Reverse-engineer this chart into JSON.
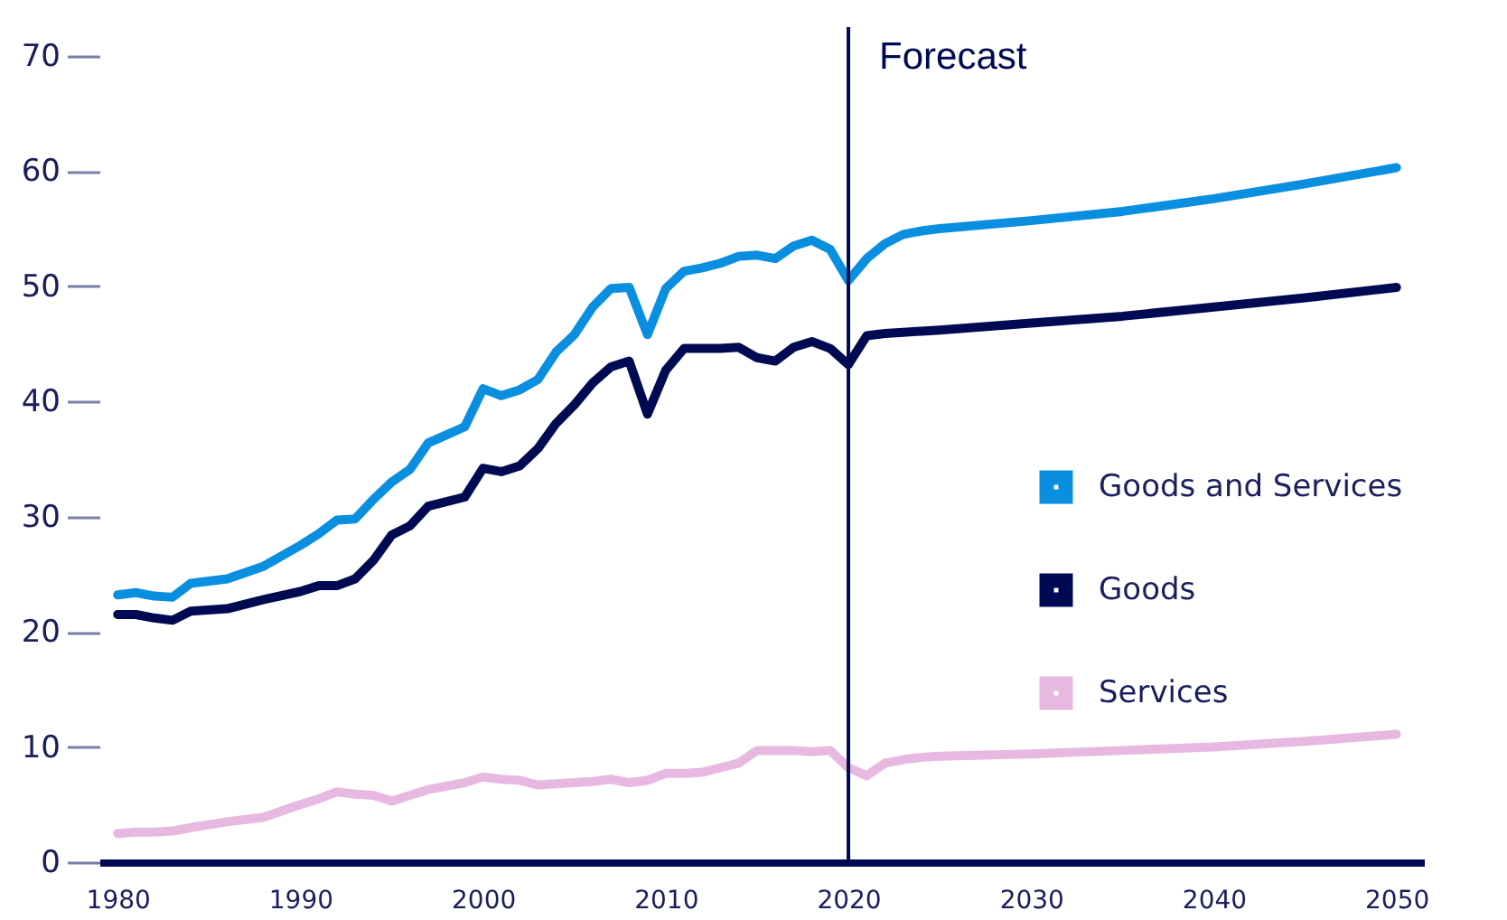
{
  "chart_data": {
    "type": "line",
    "x": [
      1980,
      1981,
      1982,
      1983,
      1984,
      1986,
      1988,
      1990,
      1991,
      1992,
      1993,
      1994,
      1995,
      1996,
      1997,
      1999,
      2000,
      2001,
      2002,
      2003,
      2004,
      2005,
      2006,
      2007,
      2008,
      2009,
      2010,
      2011,
      2012,
      2013,
      2014,
      2015,
      2016,
      2017,
      2018,
      2019,
      2020,
      2021,
      2022,
      2023,
      2024,
      2025,
      2030,
      2035,
      2040,
      2045,
      2050
    ],
    "series": [
      {
        "name": "Goods and Services",
        "color": "#0a8fe0",
        "values": [
          23.2,
          23.4,
          23.1,
          23.0,
          24.2,
          24.6,
          25.7,
          27.5,
          28.5,
          29.7,
          29.8,
          31.5,
          33.0,
          34.1,
          36.4,
          37.8,
          41.1,
          40.5,
          41.0,
          41.9,
          44.3,
          45.8,
          48.2,
          49.8,
          49.9,
          45.8,
          49.8,
          51.3,
          51.6,
          52.0,
          52.6,
          52.7,
          52.4,
          53.5,
          54.0,
          53.2,
          50.5,
          52.4,
          53.7,
          54.5,
          54.8,
          55.0,
          55.7,
          56.5,
          57.6,
          58.9,
          60.3
        ]
      },
      {
        "name": "Goods",
        "color": "#000a52",
        "values": [
          21.5,
          21.5,
          21.2,
          21.0,
          21.8,
          22.0,
          22.8,
          23.5,
          24.0,
          24.0,
          24.6,
          26.2,
          28.4,
          29.2,
          30.9,
          31.7,
          34.2,
          33.9,
          34.4,
          35.9,
          38.1,
          39.7,
          41.6,
          43.0,
          43.5,
          38.9,
          42.7,
          44.6,
          44.6,
          44.6,
          44.7,
          43.8,
          43.5,
          44.7,
          45.2,
          44.6,
          43.2,
          45.7,
          45.9,
          46.0,
          46.1,
          46.2,
          46.8,
          47.4,
          48.2,
          49.0,
          49.9
        ]
      },
      {
        "name": "Services",
        "color": "#e8b9e0",
        "values": [
          2.5,
          2.6,
          2.6,
          2.7,
          3.0,
          3.5,
          3.9,
          5.0,
          5.5,
          6.1,
          5.9,
          5.8,
          5.3,
          5.8,
          6.3,
          6.9,
          7.4,
          7.2,
          7.1,
          6.7,
          6.8,
          6.9,
          7.0,
          7.2,
          6.9,
          7.1,
          7.7,
          7.7,
          7.8,
          8.2,
          8.6,
          9.7,
          9.7,
          9.7,
          9.6,
          9.7,
          8.2,
          7.5,
          8.6,
          8.9,
          9.1,
          9.2,
          9.4,
          9.7,
          10.0,
          10.5,
          11.1
        ]
      }
    ],
    "xlim": [
      1979,
      2051.5
    ],
    "xticks": [
      1980,
      1990,
      2000,
      2010,
      2020,
      2030,
      2040,
      2050
    ],
    "ylim": [
      0,
      72.5
    ],
    "yticks": [
      0,
      10,
      20,
      30,
      40,
      50,
      60,
      70
    ],
    "ref_lines": [
      {
        "axis": "x",
        "value": 2020,
        "label": "Forecast",
        "color": "#000a52"
      }
    ],
    "grid": false,
    "legend": "right",
    "marker": "none",
    "line_style": "solid"
  }
}
